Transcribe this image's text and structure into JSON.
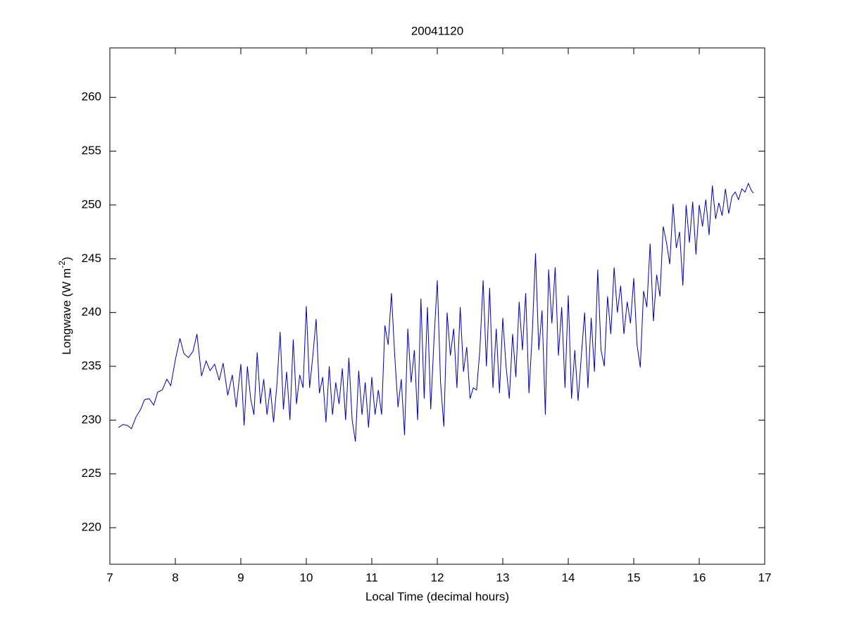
{
  "chart_data": {
    "type": "line",
    "title": "20041120",
    "xlabel": "Local Time (decimal hours)",
    "ylabel_parts": [
      "Longwave (W m",
      "-2",
      ")"
    ],
    "color": "#0000b4",
    "xlim": [
      7,
      17
    ],
    "xticks": [
      7,
      8,
      9,
      10,
      11,
      12,
      13,
      14,
      15,
      16,
      17
    ],
    "ylim": [
      216.6,
      264.6
    ],
    "yticks": [
      220,
      225,
      230,
      235,
      240,
      245,
      250,
      255,
      260
    ],
    "x": [
      7.13,
      7.2,
      7.27,
      7.33,
      7.4,
      7.47,
      7.53,
      7.6,
      7.67,
      7.73,
      7.8,
      7.87,
      7.93,
      8.0,
      8.07,
      8.13,
      8.2,
      8.27,
      8.33,
      8.4,
      8.47,
      8.53,
      8.6,
      8.67,
      8.73,
      8.8,
      8.87,
      8.93,
      9.0,
      9.05,
      9.1,
      9.15,
      9.2,
      9.25,
      9.3,
      9.35,
      9.4,
      9.45,
      9.5,
      9.55,
      9.6,
      9.65,
      9.7,
      9.75,
      9.8,
      9.85,
      9.9,
      9.95,
      10.0,
      10.05,
      10.1,
      10.15,
      10.2,
      10.25,
      10.3,
      10.35,
      10.4,
      10.45,
      10.5,
      10.55,
      10.6,
      10.65,
      10.7,
      10.75,
      10.8,
      10.85,
      10.9,
      10.95,
      11.0,
      11.05,
      11.1,
      11.15,
      11.2,
      11.25,
      11.3,
      11.35,
      11.4,
      11.45,
      11.5,
      11.55,
      11.6,
      11.65,
      11.7,
      11.75,
      11.8,
      11.85,
      11.9,
      11.95,
      12.0,
      12.05,
      12.1,
      12.15,
      12.2,
      12.25,
      12.3,
      12.35,
      12.4,
      12.45,
      12.5,
      12.55,
      12.6,
      12.65,
      12.7,
      12.75,
      12.8,
      12.85,
      12.9,
      12.95,
      13.0,
      13.05,
      13.1,
      13.15,
      13.2,
      13.25,
      13.3,
      13.35,
      13.4,
      13.45,
      13.5,
      13.55,
      13.6,
      13.65,
      13.7,
      13.75,
      13.8,
      13.85,
      13.9,
      13.95,
      14.0,
      14.05,
      14.1,
      14.15,
      14.2,
      14.25,
      14.3,
      14.35,
      14.4,
      14.45,
      14.5,
      14.55,
      14.6,
      14.65,
      14.7,
      14.75,
      14.8,
      14.85,
      14.9,
      14.95,
      15.0,
      15.05,
      15.1,
      15.15,
      15.2,
      15.25,
      15.3,
      15.35,
      15.4,
      15.45,
      15.5,
      15.55,
      15.6,
      15.65,
      15.7,
      15.75,
      15.8,
      15.85,
      15.9,
      15.95,
      16.0,
      16.05,
      16.1,
      16.15,
      16.2,
      16.25,
      16.3,
      16.35,
      16.4,
      16.45,
      16.5,
      16.55,
      16.6,
      16.65,
      16.7,
      16.75,
      16.8,
      16.83
    ],
    "values": [
      229.3,
      229.6,
      229.5,
      229.2,
      230.3,
      231.0,
      231.9,
      232.0,
      231.4,
      232.6,
      232.8,
      233.8,
      233.2,
      235.6,
      237.6,
      236.2,
      235.8,
      236.4,
      238.0,
      234.1,
      235.5,
      234.6,
      235.2,
      233.7,
      235.3,
      232.3,
      234.2,
      231.2,
      235.2,
      229.5,
      235.0,
      232.0,
      230.5,
      236.3,
      231.5,
      233.8,
      230.5,
      233.0,
      229.8,
      233.2,
      238.2,
      231.0,
      234.5,
      230.0,
      237.5,
      231.5,
      234.2,
      233.0,
      240.6,
      233.0,
      236.0,
      239.4,
      232.5,
      234.0,
      229.8,
      235.0,
      230.5,
      233.5,
      231.5,
      234.8,
      230.0,
      235.8,
      230.0,
      228.0,
      234.6,
      230.5,
      233.5,
      229.3,
      234.0,
      230.5,
      232.8,
      230.5,
      238.8,
      237.0,
      241.8,
      236.0,
      231.2,
      233.8,
      228.6,
      238.5,
      233.5,
      236.5,
      230.0,
      241.3,
      232.0,
      240.5,
      231.0,
      237.5,
      243.0,
      233.5,
      229.4,
      240.0,
      236.0,
      238.5,
      233.0,
      240.5,
      234.5,
      236.8,
      232.0,
      233.0,
      232.8,
      236.5,
      243.0,
      235.0,
      242.3,
      233.0,
      238.5,
      232.5,
      239.5,
      235.0,
      232.0,
      238.0,
      234.0,
      241.0,
      236.5,
      241.8,
      232.5,
      238.0,
      245.5,
      236.5,
      240.2,
      230.5,
      244.0,
      239.0,
      244.2,
      236.0,
      240.5,
      233.0,
      241.6,
      232.0,
      236.5,
      231.8,
      236.0,
      240.0,
      233.0,
      239.5,
      234.5,
      244.0,
      236.5,
      235.0,
      241.5,
      238.0,
      244.2,
      240.0,
      242.5,
      238.0,
      241.0,
      239.0,
      243.2,
      237.0,
      234.9,
      242.0,
      240.5,
      246.4,
      239.2,
      243.5,
      241.5,
      248.0,
      246.5,
      244.5,
      250.1,
      246.0,
      247.5,
      242.5,
      250.0,
      246.5,
      250.3,
      245.4,
      250.0,
      248.0,
      250.5,
      247.2,
      251.8,
      248.7,
      250.2,
      249.0,
      251.5,
      249.2,
      250.8,
      251.2,
      250.5,
      251.5,
      251.2,
      252.0,
      251.3,
      251.1
    ]
  }
}
